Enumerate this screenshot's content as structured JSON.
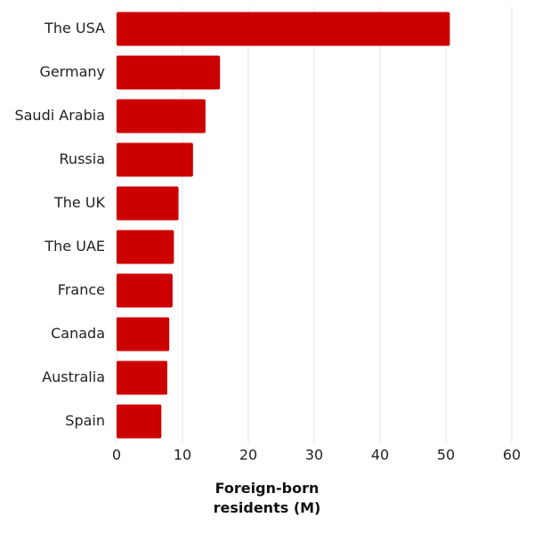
{
  "chart_data": {
    "type": "bar",
    "orientation": "horizontal",
    "x_label": "Foreign-born residents (M)",
    "categories": [
      "The USA",
      "Germany",
      "Saudi Arabia",
      "Russia",
      "The UK",
      "The UAE",
      "France",
      "Canada",
      "Australia",
      "Spain"
    ],
    "values": [
      50.6,
      15.7,
      13.5,
      11.6,
      9.4,
      8.7,
      8.5,
      8.0,
      7.7,
      6.8
    ],
    "color": "#cc0000",
    "xlim": [
      0,
      60
    ],
    "xticks": [
      0,
      10,
      20,
      30,
      40,
      50,
      60
    ],
    "grid": true
  }
}
